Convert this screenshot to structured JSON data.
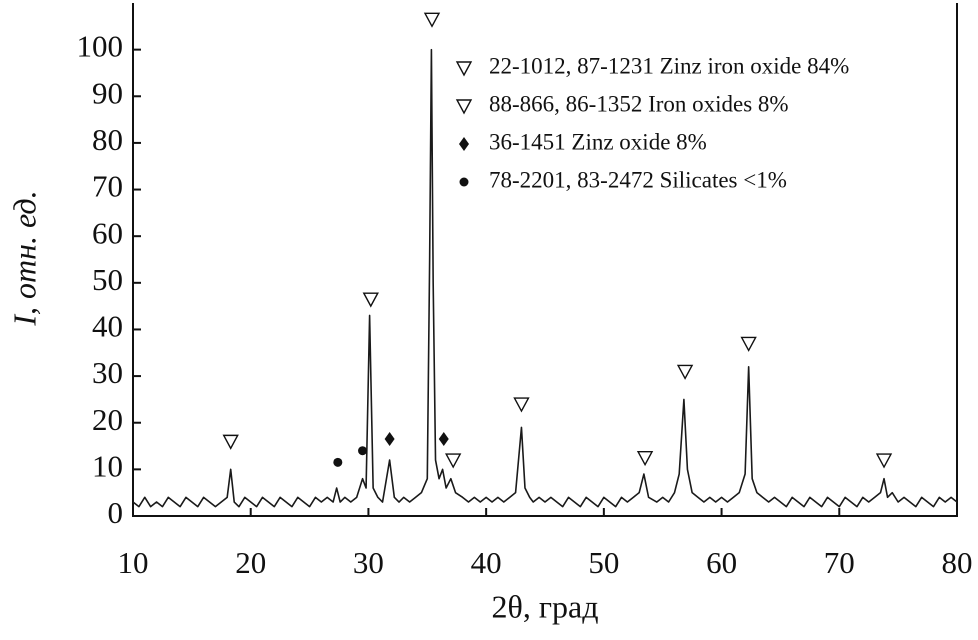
{
  "chart_data": {
    "type": "line",
    "xlabel": "2θ, град",
    "ylabel": "I, отн. ед.",
    "xlim": [
      10,
      80
    ],
    "ylim": [
      0,
      110
    ],
    "xticks": [
      10,
      20,
      30,
      40,
      50,
      60,
      70,
      80
    ],
    "yticks": [
      0,
      10,
      20,
      30,
      40,
      50,
      60,
      70,
      80,
      90,
      100
    ],
    "color": "#1a1a1a",
    "x": [
      10,
      10.5,
      11,
      11.5,
      12,
      12.5,
      13,
      13.5,
      14,
      14.5,
      15,
      15.5,
      16,
      16.5,
      17,
      17.5,
      18,
      18.3,
      18.6,
      19,
      19.5,
      20,
      20.5,
      21,
      21.5,
      22,
      22.5,
      23,
      23.5,
      24,
      24.5,
      25,
      25.5,
      26,
      26.5,
      27,
      27.3,
      27.6,
      28,
      28.5,
      29,
      29.5,
      29.8,
      30.1,
      30.4,
      30.8,
      31.2,
      31.8,
      32.2,
      32.6,
      33,
      33.5,
      34,
      34.5,
      35,
      35.2,
      35.35,
      35.5,
      35.7,
      36,
      36.3,
      36.6,
      37,
      37.4,
      38,
      38.5,
      39,
      39.5,
      40,
      40.5,
      41,
      41.5,
      42,
      42.5,
      43,
      43.3,
      43.7,
      44,
      44.5,
      45,
      45.5,
      46,
      46.5,
      47,
      47.5,
      48,
      48.5,
      49,
      49.5,
      50,
      50.5,
      51,
      51.5,
      52,
      52.5,
      53,
      53.4,
      53.8,
      54.5,
      55,
      55.5,
      56,
      56.4,
      56.8,
      57.1,
      57.5,
      58,
      58.5,
      59,
      59.5,
      60,
      60.5,
      61,
      61.5,
      62,
      62.3,
      62.6,
      63,
      63.5,
      64,
      64.5,
      65,
      65.5,
      66,
      66.5,
      67,
      67.5,
      68,
      68.5,
      69,
      69.5,
      70,
      70.5,
      71,
      71.5,
      72,
      72.5,
      73,
      73.5,
      73.8,
      74.1,
      74.5,
      75,
      75.5,
      76,
      76.5,
      77,
      77.5,
      78,
      78.5,
      79,
      79.5,
      80
    ],
    "values": [
      3,
      2,
      4,
      2,
      3,
      2,
      4,
      3,
      2,
      4,
      3,
      2,
      4,
      3,
      2,
      3,
      4,
      10,
      3,
      2,
      4,
      3,
      2,
      4,
      3,
      2,
      4,
      3,
      2,
      4,
      3,
      2,
      4,
      3,
      4,
      3,
      6,
      3,
      4,
      3,
      4,
      8,
      6,
      43,
      6,
      4,
      3,
      12,
      4,
      3,
      4,
      3,
      4,
      5,
      8,
      55,
      100,
      50,
      12,
      8,
      10,
      6,
      8,
      5,
      4,
      3,
      4,
      3,
      4,
      3,
      4,
      3,
      4,
      5,
      19,
      6,
      4,
      3,
      4,
      3,
      4,
      3,
      2,
      4,
      3,
      2,
      4,
      3,
      2,
      4,
      3,
      2,
      4,
      3,
      4,
      5,
      9,
      4,
      3,
      4,
      3,
      5,
      9,
      25,
      10,
      5,
      4,
      3,
      4,
      3,
      4,
      3,
      4,
      5,
      9,
      32,
      8,
      5,
      4,
      3,
      4,
      3,
      2,
      4,
      3,
      2,
      4,
      3,
      2,
      4,
      3,
      2,
      4,
      3,
      2,
      4,
      3,
      4,
      5,
      8,
      4,
      5,
      3,
      4,
      3,
      2,
      4,
      3,
      2,
      4,
      3,
      4,
      3
    ],
    "markers": [
      {
        "x": 18.3,
        "y": 16,
        "symbol": "triangle"
      },
      {
        "x": 27.4,
        "y": 11.5,
        "symbol": "circle"
      },
      {
        "x": 29.5,
        "y": 14,
        "symbol": "circle"
      },
      {
        "x": 30.2,
        "y": 46.5,
        "symbol": "triangle"
      },
      {
        "x": 31.8,
        "y": 16.5,
        "symbol": "diamond"
      },
      {
        "x": 35.4,
        "y": 106.5,
        "symbol": "triangle"
      },
      {
        "x": 36.4,
        "y": 16.5,
        "symbol": "diamond"
      },
      {
        "x": 37.2,
        "y": 12,
        "symbol": "triangle"
      },
      {
        "x": 43.0,
        "y": 24,
        "symbol": "triangle"
      },
      {
        "x": 53.5,
        "y": 12.5,
        "symbol": "triangle"
      },
      {
        "x": 56.9,
        "y": 31,
        "symbol": "triangle"
      },
      {
        "x": 62.3,
        "y": 37,
        "symbol": "triangle"
      },
      {
        "x": 73.8,
        "y": 12,
        "symbol": "triangle"
      }
    ],
    "legend": [
      {
        "symbol": "triangle",
        "label": "22-1012, 87-1231 Zinz iron oxide 84%"
      },
      {
        "symbol": "triangle",
        "label": "88-866, 86-1352 Iron oxides 8%"
      },
      {
        "symbol": "diamond",
        "label": "36-1451 Zinz oxide 8%"
      },
      {
        "symbol": "circle",
        "label": "78-2201, 83-2472 Silicates <1%"
      }
    ]
  }
}
